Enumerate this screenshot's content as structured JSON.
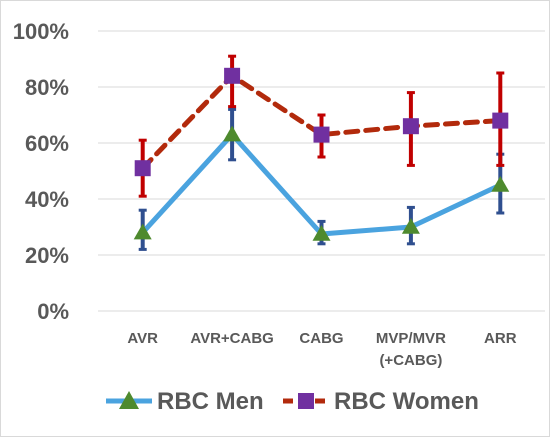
{
  "chart_data": {
    "type": "line",
    "categories": [
      [
        "AVR"
      ],
      [
        "AVR+CABG"
      ],
      [
        "CABG"
      ],
      [
        "MVP/MVR",
        "(+CABG)"
      ],
      [
        "ARR"
      ]
    ],
    "ylim": [
      0,
      100
    ],
    "yticks": [
      "0%",
      "20%",
      "40%",
      "60%",
      "80%",
      "100%"
    ],
    "ytick_values": [
      0,
      20,
      40,
      60,
      80,
      100
    ],
    "grid": true,
    "legend_position": "bottom",
    "series": [
      {
        "name": "RBC Men",
        "values": [
          28,
          63,
          27.5,
          30,
          45
        ],
        "error_low": [
          22,
          54,
          24,
          24,
          35
        ],
        "error_high": [
          36,
          72,
          32,
          37,
          56
        ],
        "line_color": "#4aa3df",
        "marker_color": "#4e8a2e",
        "error_color": "#2f4f8f",
        "marker": "triangle",
        "line_style": "solid"
      },
      {
        "name": "RBC Women",
        "values": [
          51,
          84,
          63,
          66,
          68
        ],
        "error_low": [
          41,
          73,
          55,
          52,
          52
        ],
        "error_high": [
          61,
          91,
          70,
          78,
          85
        ],
        "line_color": "#b22a0c",
        "marker_color": "#7030a0",
        "error_color": "#c00000",
        "marker": "square",
        "line_style": "dashed"
      }
    ]
  }
}
